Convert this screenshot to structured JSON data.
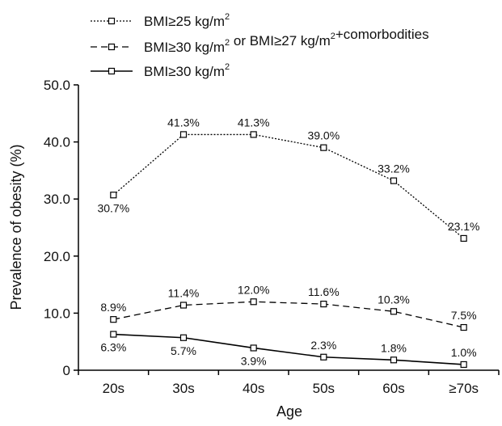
{
  "chart_data": {
    "type": "line",
    "categories": [
      "20s",
      "30s",
      "40s",
      "50s",
      "60s",
      "≥70s"
    ],
    "xlabel": "Age",
    "ylabel": "Prevalence of obesity (%)",
    "ylim": [
      0,
      50
    ],
    "yticks": [
      "0",
      "10.0",
      "20.0",
      "30.0",
      "40.0",
      "50.0"
    ],
    "grid": false,
    "legend_position": "top-left",
    "series": [
      {
        "name": "BMI≥25 kg/m2",
        "name_main": "BMI≥25 kg/m",
        "name_sup": "2",
        "name_tail": "",
        "style": "dotted",
        "values": [
          30.7,
          41.3,
          41.3,
          39.0,
          33.2,
          23.1
        ],
        "labels": [
          "30.7%",
          "41.3%",
          "41.3%",
          "39.0%",
          "33.2%",
          "23.1%"
        ],
        "label_pos": [
          "below",
          "above",
          "above",
          "above",
          "above",
          "above"
        ]
      },
      {
        "name": "BMI≥30 kg/m2 or BMI≥27 kg/m2+comorbodities",
        "name_main": "BMI≥30 kg/m",
        "name_sup": "2",
        "name_mid": " or BMI≥27 kg/m",
        "name_sup2": "2",
        "name_tail": "+comorbodities",
        "style": "dashed",
        "values": [
          8.9,
          11.4,
          12.0,
          11.6,
          10.3,
          7.5
        ],
        "labels": [
          "8.9%",
          "11.4%",
          "12.0%",
          "11.6%",
          "10.3%",
          "7.5%"
        ],
        "label_pos": [
          "above",
          "above",
          "above",
          "above",
          "above",
          "above"
        ]
      },
      {
        "name": "BMI≥30 kg/m2",
        "name_main": "BMI≥30 kg/m",
        "name_sup": "2",
        "name_tail": "",
        "style": "solid",
        "values": [
          6.3,
          5.7,
          3.9,
          2.3,
          1.8,
          1.0
        ],
        "labels": [
          "6.3%",
          "5.7%",
          "3.9%",
          "2.3%",
          "1.8%",
          "1.0%"
        ],
        "label_pos": [
          "below",
          "below",
          "below",
          "above",
          "above",
          "above"
        ]
      }
    ]
  }
}
